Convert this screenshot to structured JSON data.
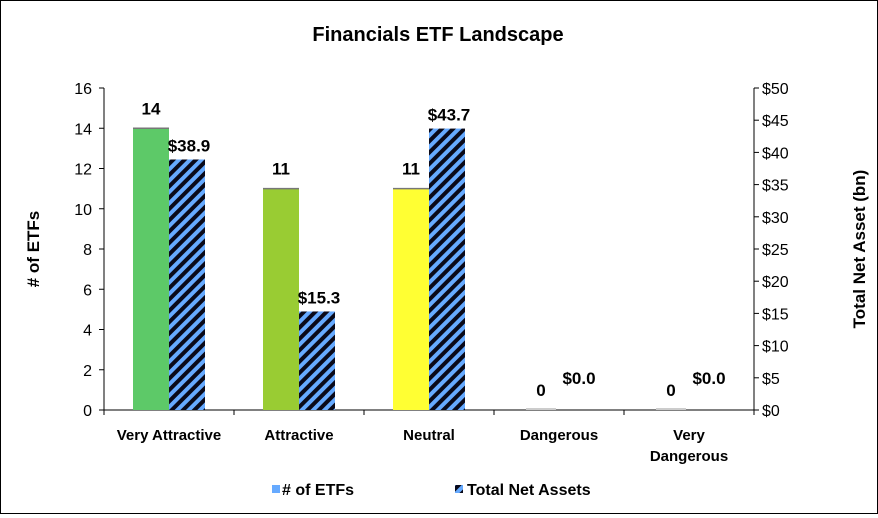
{
  "chart_data": {
    "type": "bar",
    "title": "Financials ETF Landscape",
    "categories": [
      "Very Attractive",
      "Attractive",
      "Neutral",
      "Dangerous",
      "Very Dangerous"
    ],
    "category_lines": [
      [
        "Very Attractive"
      ],
      [
        "Attractive"
      ],
      [
        "Neutral"
      ],
      [
        "Dangerous"
      ],
      [
        "Very",
        "Dangerous"
      ]
    ],
    "series": [
      {
        "name": "# of ETFs",
        "axis": "left",
        "values": [
          14,
          11,
          11,
          0,
          0
        ],
        "labels": [
          "14",
          "11",
          "11",
          "0",
          "0"
        ],
        "colors": [
          "#5DC968",
          "#99CC33",
          "#FFFF33",
          "#cccccc",
          "#cccccc"
        ],
        "legend_color": "#66AAFF"
      },
      {
        "name": "Total Net Assets",
        "axis": "right",
        "values": [
          38.9,
          15.3,
          43.7,
          0.0,
          0.0
        ],
        "labels": [
          "$38.9",
          "$15.3",
          "$43.7",
          "$0.0",
          "$0.0"
        ],
        "pattern": "diagonal-stripes",
        "pattern_colors": [
          "#66AAFF",
          "#0A0A1A"
        ]
      }
    ],
    "ylabel": "# of ETFs",
    "ylim": [
      0,
      16
    ],
    "yticks": [
      "0",
      "2",
      "4",
      "6",
      "8",
      "10",
      "12",
      "14",
      "16"
    ],
    "y2label": "Total Net Asset (bn)",
    "y2lim": [
      0,
      50
    ],
    "y2ticks": [
      "$0",
      "$5",
      "$10",
      "$15",
      "$20",
      "$25",
      "$30",
      "$35",
      "$40",
      "$45",
      "$50"
    ],
    "grid": false,
    "legend_position": "bottom"
  }
}
